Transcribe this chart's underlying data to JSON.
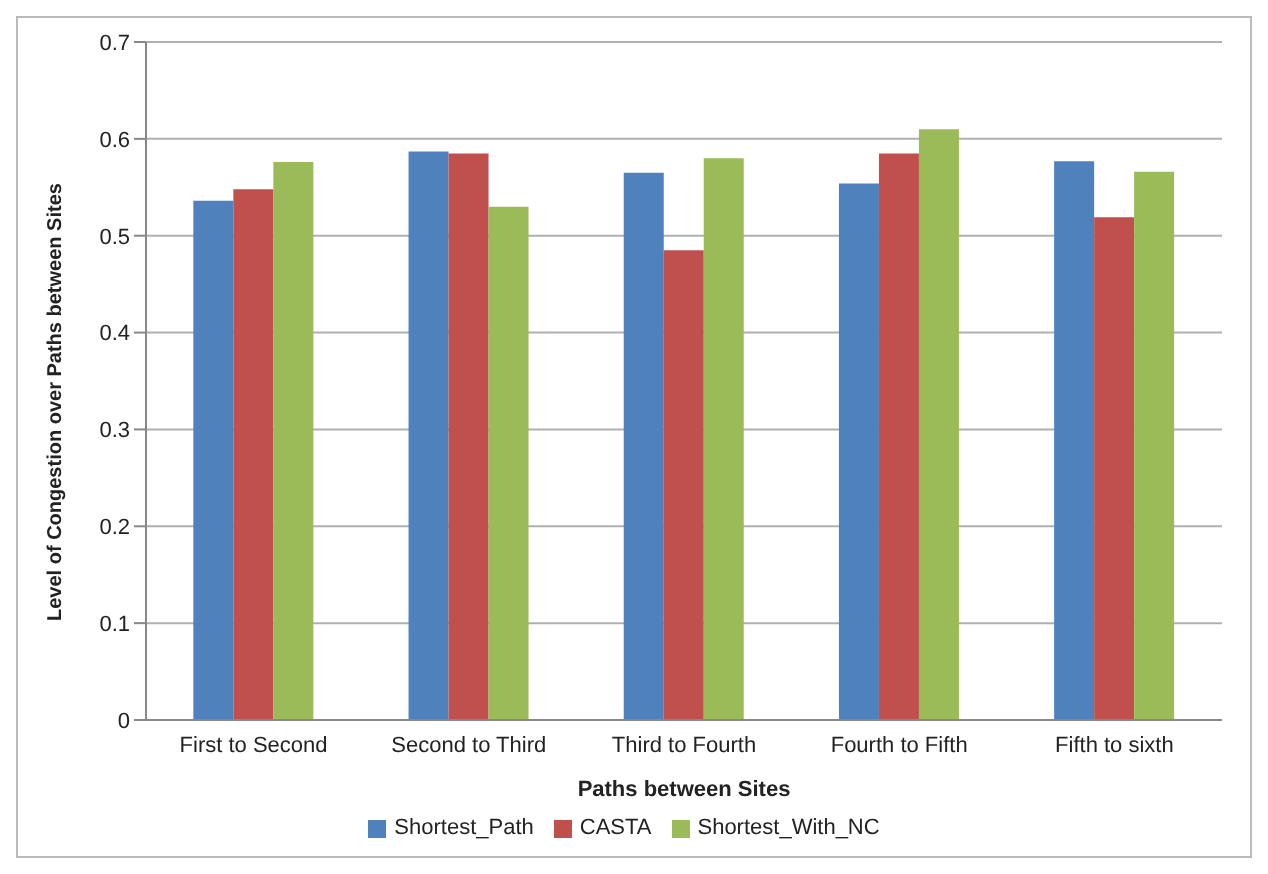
{
  "chart_data": {
    "type": "bar",
    "xlabel": "Paths between Sites",
    "ylabel": "Level of Congestion over Paths between Sites",
    "categories": [
      "First to Second",
      "Second to Third",
      "Third to Fourth",
      "Fourth to Fifth",
      "Fifth to sixth"
    ],
    "series": [
      {
        "name": "Shortest_Path",
        "color": "#4f81bd",
        "values": [
          0.536,
          0.587,
          0.565,
          0.554,
          0.577
        ]
      },
      {
        "name": "CASTA",
        "color": "#c0504d",
        "values": [
          0.548,
          0.585,
          0.485,
          0.585,
          0.519
        ]
      },
      {
        "name": "Shortest_With_NC",
        "color": "#9bbb59",
        "values": [
          0.576,
          0.53,
          0.58,
          0.61,
          0.566
        ]
      }
    ],
    "ylim": [
      0,
      0.7
    ],
    "yticks": [
      0,
      0.1,
      0.2,
      0.3,
      0.4,
      0.5,
      0.6,
      0.7
    ],
    "grid": "y",
    "legend": "bottom"
  }
}
